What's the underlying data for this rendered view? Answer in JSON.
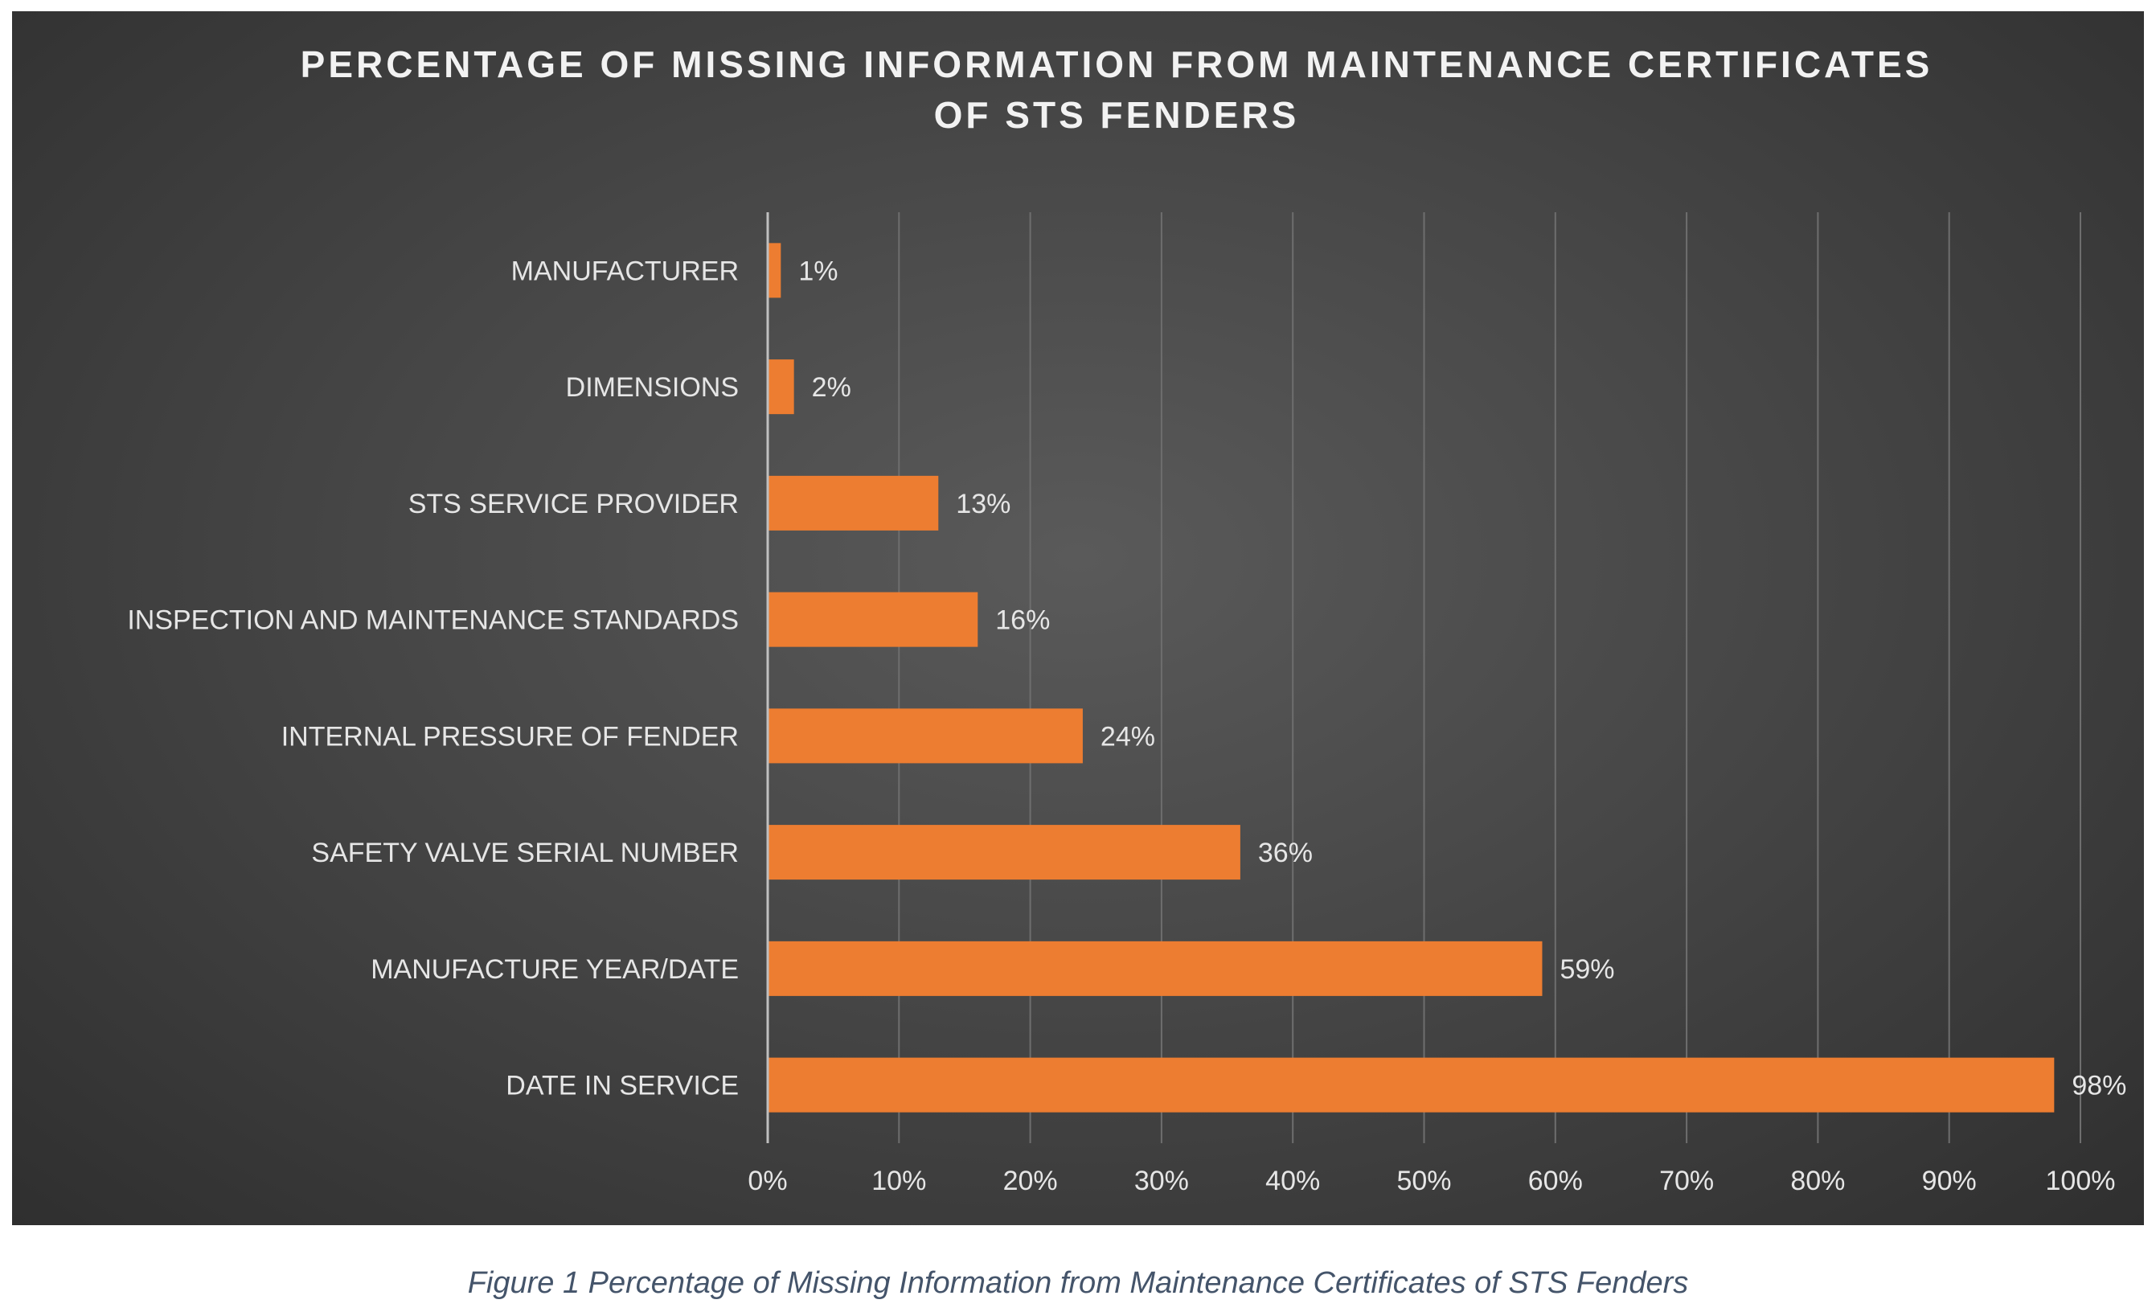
{
  "chart_data": {
    "type": "bar",
    "orientation": "horizontal",
    "title_lines": [
      "PERCENTAGE OF MISSING INFORMATION FROM MAINTENANCE CERTIFICATES",
      "OF STS FENDERS"
    ],
    "categories": [
      "MANUFACTURER",
      "DIMENSIONS",
      "STS SERVICE PROVIDER",
      "INSPECTION AND MAINTENANCE STANDARDS",
      "INTERNAL PRESSURE OF FENDER",
      "SAFETY VALVE SERIAL NUMBER",
      "MANUFACTURE YEAR/DATE",
      "DATE IN SERVICE"
    ],
    "values": [
      1,
      2,
      13,
      16,
      24,
      36,
      59,
      98
    ],
    "data_labels": [
      "1%",
      "2%",
      "13%",
      "16%",
      "24%",
      "36%",
      "59%",
      "98%"
    ],
    "xlim": [
      0,
      100
    ],
    "x_ticks": [
      0,
      10,
      20,
      30,
      40,
      50,
      60,
      70,
      80,
      90,
      100
    ],
    "x_tick_labels": [
      "0%",
      "10%",
      "20%",
      "30%",
      "40%",
      "50%",
      "60%",
      "70%",
      "80%",
      "90%",
      "100%"
    ],
    "grid": "vertical",
    "legend": "none",
    "bar_color": "#ed7d31"
  },
  "caption": "Figure 1 Percentage of Missing Information from Maintenance Certificates of STS Fenders"
}
